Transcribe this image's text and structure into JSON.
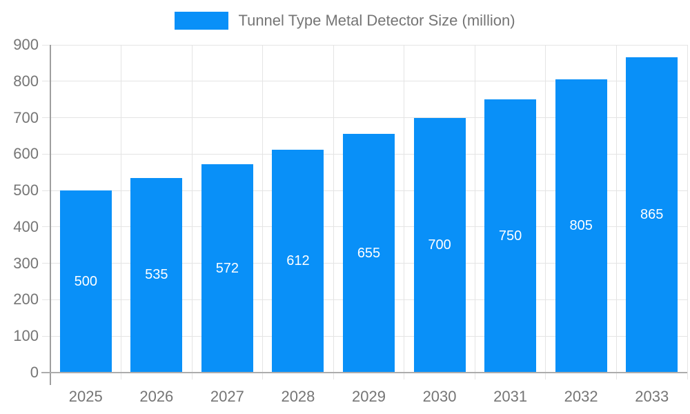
{
  "chart_data": {
    "type": "bar",
    "title": "Tunnel Type Metal Detector Size (million)",
    "categories": [
      "2025",
      "2026",
      "2027",
      "2028",
      "2029",
      "2030",
      "2031",
      "2032",
      "2033"
    ],
    "values": [
      500,
      535,
      572,
      612,
      655,
      700,
      750,
      805,
      865
    ],
    "xlabel": "",
    "ylabel": "",
    "ylim": [
      0,
      900
    ],
    "yticks": [
      0,
      100,
      200,
      300,
      400,
      500,
      600,
      700,
      800,
      900
    ],
    "grid": true,
    "legend_position": "top-center",
    "value_label_position": "inside-center"
  },
  "colors": {
    "bar": "#0990f8",
    "grid": "#e4e4e4",
    "axis": "#9e9e9e",
    "axis_light": "#acacac",
    "tick_text": "#757575",
    "value_text": "#ffffff",
    "background": "#ffffff"
  }
}
